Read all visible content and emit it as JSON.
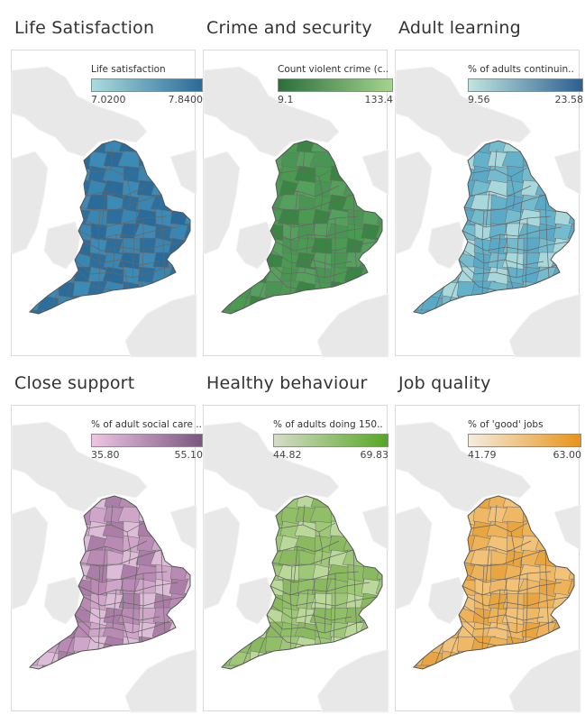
{
  "panels": [
    {
      "id": "life",
      "title": "Life Satisfaction",
      "legend": {
        "title": "Life satisfaction",
        "min": "7.0200",
        "max": "7.8400",
        "color_low": "#a9dcdc",
        "color_high": "#2a6a98"
      },
      "palette": [
        "#2b6b99",
        "#2f7aa6",
        "#3886b1",
        "#4292bb",
        "#2c6f9e",
        "#357fae",
        "#3c8bb6",
        "#5aa3c4"
      ]
    },
    {
      "id": "crime",
      "title": "Crime and security",
      "legend": {
        "title": "Count violent crime (c..",
        "min": "9.1",
        "max": "133.4",
        "color_low": "#2c6e3a",
        "color_high": "#a3d48e"
      },
      "palette": [
        "#3f8a48",
        "#4a9553",
        "#357e40",
        "#55a05c",
        "#448f4d",
        "#3a8544",
        "#5aa861",
        "#4b9a52"
      ]
    },
    {
      "id": "learning",
      "title": "Adult learning",
      "legend": {
        "title": "% of adults continuin..",
        "min": "9.56",
        "max": "23.58",
        "color_low": "#bfe5e0",
        "color_high": "#2d5f8f"
      },
      "palette": [
        "#74bccd",
        "#89c7d2",
        "#5aaac7",
        "#9bd1d8",
        "#64b2ca",
        "#4e9fc2",
        "#a8d8dc",
        "#7ec2d0"
      ]
    },
    {
      "id": "support",
      "title": "Close support",
      "legend": {
        "title": "% of adult social care ..",
        "min": "35.80",
        "max": "55.10",
        "color_low": "#ecc6e2",
        "color_high": "#7b5680"
      },
      "palette": [
        "#c79cc0",
        "#b98bb4",
        "#d3afcc",
        "#aa7ea7",
        "#c294bd",
        "#ddbcd7",
        "#b58ab1",
        "#cfa6c9"
      ]
    },
    {
      "id": "healthy",
      "title": "Healthy behaviour",
      "legend": {
        "title": "% of adults doing 150..",
        "min": "44.82",
        "max": "69.83",
        "color_low": "#d5ddc8",
        "color_high": "#57a624"
      },
      "palette": [
        "#9ec777",
        "#a8cd83",
        "#91bf68",
        "#b3d391",
        "#8ab95f",
        "#a2ca7c",
        "#bad89a",
        "#98c370"
      ]
    },
    {
      "id": "jobs",
      "title": "Job quality",
      "legend": {
        "title": "% of 'good' jobs",
        "min": "41.79",
        "max": "63.00",
        "color_low": "#f5ece0",
        "color_high": "#e8941a"
      },
      "palette": [
        "#f0bd68",
        "#eeb259",
        "#f3c985",
        "#e9a540",
        "#f5d29a",
        "#eeb864",
        "#e89e35",
        "#f1c277"
      ]
    }
  ]
}
